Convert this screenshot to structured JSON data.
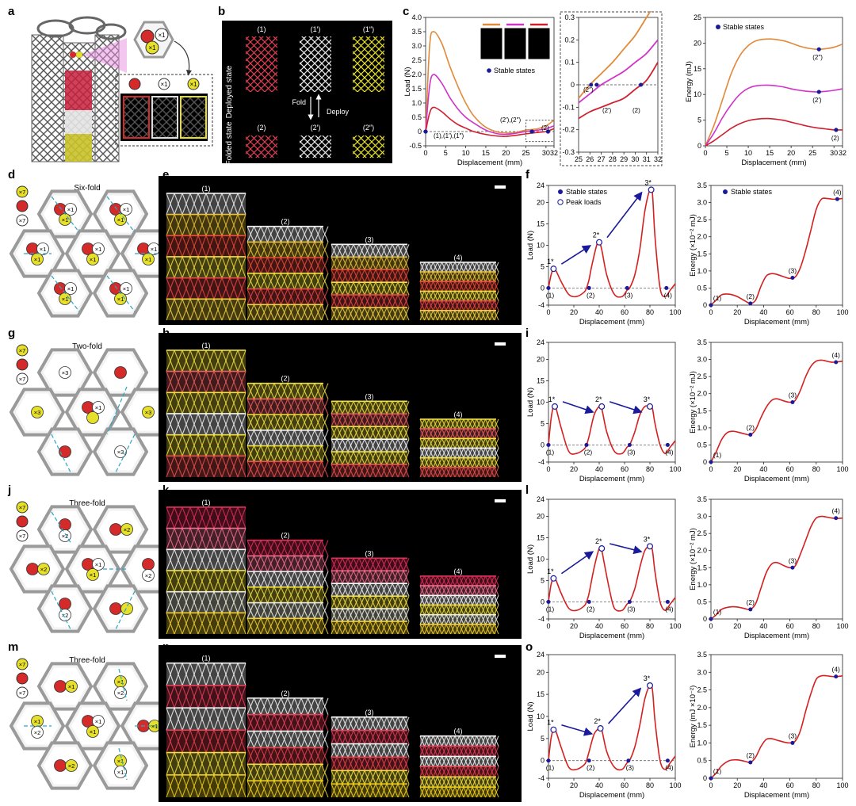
{
  "panel_labels": [
    "a",
    "b",
    "c",
    "d",
    "e",
    "f",
    "g",
    "h",
    "i",
    "j",
    "k",
    "l",
    "m",
    "n",
    "o"
  ],
  "colors": {
    "red": "#d42a2a",
    "white": "#e8e8e8",
    "yellow": "#e6e02a",
    "orange": "#e08a3a",
    "magenta": "#d033c8",
    "crimson": "#d01f2f",
    "frame": "#9a9a9a",
    "cyan": "#2aa7c4",
    "navy": "#1a1a9a"
  },
  "panel_a": {
    "multipliers": [
      "×1",
      "×1",
      "×1",
      "×1"
    ]
  },
  "panel_b": {
    "deployed_label": "Deployed state",
    "folded_label": "Folded state",
    "top_labels": [
      "(1)",
      "(1′)",
      "(1″)"
    ],
    "bottom_labels": [
      "(2)",
      "(2′)",
      "(2″)"
    ],
    "fold_label": "Fold",
    "deploy_label": "Deploy"
  },
  "panel_c_load": {
    "ylabel": "Load (N)",
    "xlabel": "Displacement (mm)",
    "yticks": [
      "4.0",
      "3.5",
      "3.0",
      "2.5",
      "2.0",
      "1.5",
      "1.0",
      "0.5",
      "0",
      "-0.5"
    ],
    "xticks": [
      "0",
      "5",
      "10",
      "15",
      "20",
      "25",
      "30",
      "32"
    ],
    "legend": "Stable states",
    "annotations": [
      "(1),(1′),(1″)",
      "(2′),(2″)",
      "(2)"
    ]
  },
  "panel_c_inset": {
    "yticks": [
      "0.3",
      "0.2",
      "0.1",
      "0",
      "-0.1",
      "-0.2",
      "-0.3"
    ],
    "xticks": [
      "25",
      "26",
      "27",
      "28",
      "29",
      "30",
      "31",
      "32"
    ],
    "annotations": [
      "(2″)",
      "(2′)",
      "(2)"
    ]
  },
  "panel_c_energy": {
    "ylabel": "Energy (mJ)",
    "xlabel": "Displacement (mm)",
    "yticks": [
      "25",
      "20",
      "15",
      "10",
      "5",
      "0"
    ],
    "xticks": [
      "0",
      "5",
      "10",
      "15",
      "20",
      "25",
      "30",
      "32"
    ],
    "legend": "Stable states",
    "annotations": [
      "(2″)",
      "(2′)",
      "(2)"
    ]
  },
  "chart_data": [
    {
      "type": "line",
      "title": "",
      "xlabel": "Displacement (mm)",
      "ylabel": "Load (N)",
      "xlim": [
        0,
        32
      ],
      "ylim": [
        -0.5,
        4.0
      ],
      "series": [
        {
          "color": "#e08a3a",
          "x": [
            0,
            1,
            2,
            4,
            6,
            8,
            10,
            12,
            15,
            18,
            20,
            22,
            25,
            28,
            30,
            32
          ],
          "y": [
            0,
            3.0,
            3.5,
            3.1,
            2.3,
            1.6,
            1.0,
            0.55,
            0.15,
            -0.02,
            -0.05,
            -0.04,
            0.05,
            0.1,
            0.2,
            0.4
          ]
        },
        {
          "color": "#d033c8",
          "x": [
            0,
            1,
            2,
            4,
            6,
            8,
            10,
            12,
            15,
            18,
            20,
            22,
            25,
            28,
            30,
            32
          ],
          "y": [
            0,
            1.6,
            2.0,
            1.7,
            1.2,
            0.8,
            0.5,
            0.3,
            0.05,
            -0.08,
            -0.1,
            -0.07,
            0.0,
            0.05,
            0.1,
            0.2
          ]
        },
        {
          "color": "#d01f2f",
          "x": [
            0,
            1,
            2,
            4,
            6,
            8,
            10,
            12,
            15,
            18,
            20,
            22,
            25,
            28,
            30,
            32
          ],
          "y": [
            0,
            0.65,
            0.85,
            0.7,
            0.45,
            0.25,
            0.12,
            0.0,
            -0.1,
            -0.16,
            -0.17,
            -0.14,
            -0.08,
            -0.03,
            0.0,
            0.1
          ]
        }
      ],
      "stable_points": [
        {
          "x": 0,
          "y": 0
        },
        {
          "x": 26.5,
          "y": 0
        },
        {
          "x": 30.5,
          "y": 0
        }
      ]
    },
    {
      "type": "line",
      "xlabel": "Displacement (mm)",
      "ylabel": "Energy (mJ)",
      "xlim": [
        0,
        32
      ],
      "ylim": [
        0,
        25
      ],
      "series": [
        {
          "color": "#e08a3a",
          "x": [
            0,
            2,
            4,
            6,
            8,
            10,
            12,
            15,
            18,
            20,
            22,
            24,
            26,
            28,
            30,
            32
          ],
          "y": [
            0,
            4,
            9,
            14,
            17.5,
            19.5,
            20.5,
            20.8,
            20.5,
            20,
            19.4,
            19,
            18.8,
            18.9,
            19.2,
            19.8
          ]
        },
        {
          "color": "#d033c8",
          "x": [
            0,
            2,
            4,
            6,
            8,
            10,
            12,
            15,
            18,
            20,
            22,
            24,
            26,
            28,
            30,
            32
          ],
          "y": [
            0,
            2.5,
            5.5,
            8,
            10,
            11.2,
            11.7,
            11.8,
            11.5,
            11.1,
            10.8,
            10.6,
            10.5,
            10.6,
            10.8,
            11.1
          ]
        },
        {
          "color": "#d01f2f",
          "x": [
            0,
            2,
            4,
            6,
            8,
            10,
            12,
            15,
            18,
            20,
            22,
            24,
            26,
            28,
            30,
            32
          ],
          "y": [
            0,
            1,
            2.2,
            3.4,
            4.3,
            4.9,
            5.2,
            5.3,
            5.0,
            4.6,
            4.2,
            3.8,
            3.5,
            3.3,
            3.1,
            3.1
          ]
        }
      ],
      "stable_points": [
        {
          "x": 26.5,
          "y": 18.8
        },
        {
          "x": 26.5,
          "y": 10.5
        },
        {
          "x": 30.5,
          "y": 3.1
        }
      ]
    },
    {
      "type": "line",
      "panel": "f",
      "xlabel": "Displacement (mm)",
      "ylabel": "Load (N)",
      "xlim": [
        0,
        100
      ],
      "ylim": [
        -4,
        24
      ],
      "x": [
        0,
        2,
        4,
        6,
        10,
        16,
        22,
        28,
        30,
        32,
        34,
        38,
        40,
        42,
        46,
        52,
        58,
        62,
        64,
        68,
        72,
        76,
        80,
        82,
        84,
        88,
        92,
        96,
        100
      ],
      "y": [
        0,
        3,
        4.5,
        4,
        1.5,
        -1.5,
        -2,
        -1,
        0,
        2,
        5,
        10,
        10.7,
        9,
        3,
        -1.5,
        -2,
        -0.5,
        0,
        3,
        9,
        18,
        23,
        22,
        12,
        0,
        -2,
        -0.5,
        1
      ],
      "peaks": [
        {
          "label": "1*",
          "x": 4,
          "y": 4.5
        },
        {
          "label": "2*",
          "x": 40,
          "y": 10.7
        },
        {
          "label": "3*",
          "x": 81,
          "y": 23
        }
      ],
      "stable": [
        {
          "label": "(1)",
          "x": 0,
          "y": 0
        },
        {
          "label": "(2)",
          "x": 32,
          "y": 0
        },
        {
          "label": "(3)",
          "x": 62,
          "y": 0
        },
        {
          "label": "(4)",
          "x": 93,
          "y": 0
        }
      ]
    },
    {
      "type": "line",
      "panel": "i",
      "xlabel": "Displacement (mm)",
      "ylabel": "Load (N)",
      "xlim": [
        0,
        100
      ],
      "ylim": [
        -4,
        24
      ],
      "x": [
        0,
        2,
        4,
        6,
        10,
        16,
        22,
        28,
        30,
        32,
        36,
        40,
        42,
        46,
        52,
        58,
        62,
        64,
        68,
        72,
        76,
        80,
        82,
        84,
        88,
        92,
        96,
        100
      ],
      "y": [
        0,
        6,
        9,
        8.5,
        4,
        -1.5,
        -2,
        -1,
        0,
        2,
        7,
        9,
        8.5,
        3,
        -1.5,
        -2,
        -0.5,
        0,
        3,
        7,
        9,
        9,
        8.5,
        5,
        0,
        -2,
        -0.5,
        1
      ],
      "peaks": [
        {
          "label": "1*",
          "x": 5,
          "y": 9
        },
        {
          "label": "2*",
          "x": 42,
          "y": 9
        },
        {
          "label": "3*",
          "x": 80,
          "y": 9
        }
      ],
      "stable": [
        {
          "label": "(1)",
          "x": 0,
          "y": 0
        },
        {
          "label": "(2)",
          "x": 30,
          "y": 0
        },
        {
          "label": "(3)",
          "x": 64,
          "y": 0
        },
        {
          "label": "(4)",
          "x": 94,
          "y": 0
        }
      ]
    },
    {
      "type": "line",
      "panel": "l",
      "xlabel": "Displacement (mm)",
      "ylabel": "Load (N)",
      "xlim": [
        0,
        100
      ],
      "ylim": [
        -4,
        24
      ],
      "x": [
        0,
        2,
        4,
        6,
        10,
        16,
        22,
        28,
        30,
        32,
        36,
        40,
        42,
        44,
        48,
        52,
        58,
        62,
        64,
        68,
        72,
        76,
        80,
        82,
        84,
        88,
        92,
        96,
        100
      ],
      "y": [
        0,
        4,
        5.5,
        5,
        2,
        -1.5,
        -2,
        -1,
        0,
        2,
        8,
        12.5,
        12,
        9,
        3,
        -1.5,
        -2,
        -0.5,
        0,
        3,
        8,
        12,
        13,
        12,
        7,
        0,
        -2,
        -0.5,
        1
      ],
      "peaks": [
        {
          "label": "1*",
          "x": 4,
          "y": 5.5
        },
        {
          "label": "2*",
          "x": 42,
          "y": 12.5
        },
        {
          "label": "3*",
          "x": 80,
          "y": 13
        }
      ],
      "stable": [
        {
          "label": "(1)",
          "x": 0,
          "y": 0
        },
        {
          "label": "(2)",
          "x": 32,
          "y": 0
        },
        {
          "label": "(3)",
          "x": 64,
          "y": 0
        },
        {
          "label": "(4)",
          "x": 94,
          "y": 0
        }
      ]
    },
    {
      "type": "line",
      "panel": "o",
      "xlabel": "Displacement (mm)",
      "ylabel": "Load (N)",
      "xlim": [
        0,
        100
      ],
      "ylim": [
        -4,
        24
      ],
      "x": [
        0,
        2,
        4,
        6,
        10,
        16,
        22,
        28,
        30,
        32,
        36,
        40,
        42,
        46,
        52,
        58,
        62,
        64,
        68,
        72,
        76,
        80,
        82,
        84,
        88,
        92,
        96,
        100
      ],
      "y": [
        0,
        5,
        7,
        6.5,
        3,
        -1.5,
        -2,
        -1,
        0,
        2,
        6,
        7.3,
        7,
        2,
        -1.5,
        -2,
        -0.5,
        0,
        3,
        8,
        14,
        17,
        16,
        9,
        0,
        -2,
        -0.5,
        1
      ],
      "peaks": [
        {
          "label": "1*",
          "x": 4,
          "y": 7
        },
        {
          "label": "2*",
          "x": 41,
          "y": 7.3
        },
        {
          "label": "3*",
          "x": 80,
          "y": 17
        }
      ],
      "stable": [
        {
          "label": "(1)",
          "x": 0,
          "y": 0
        },
        {
          "label": "(2)",
          "x": 32,
          "y": 0
        },
        {
          "label": "(3)",
          "x": 63,
          "y": 0
        },
        {
          "label": "(4)",
          "x": 94,
          "y": 0
        }
      ]
    },
    {
      "type": "line",
      "panel": "f-energy",
      "xlabel": "Displacement (mm)",
      "ylabel": "Energy (×10⁻² mJ)",
      "xlim": [
        0,
        100
      ],
      "ylim": [
        0,
        3.5
      ],
      "x": [
        0,
        4,
        8,
        14,
        20,
        26,
        30,
        34,
        38,
        42,
        46,
        50,
        56,
        60,
        64,
        68,
        72,
        76,
        80,
        84,
        88,
        92,
        96,
        100
      ],
      "y": [
        0,
        0.15,
        0.3,
        0.32,
        0.25,
        0.12,
        0.05,
        0.15,
        0.55,
        0.85,
        0.92,
        0.9,
        0.82,
        0.78,
        0.82,
        1.1,
        1.6,
        2.2,
        2.8,
        3.1,
        3.12,
        3.1,
        3.1,
        3.12
      ],
      "stable": [
        {
          "label": "(1)",
          "x": 0,
          "y": 0
        },
        {
          "label": "(2)",
          "x": 30,
          "y": 0.05
        },
        {
          "label": "(3)",
          "x": 62,
          "y": 0.8
        },
        {
          "label": "(4)",
          "x": 96,
          "y": 3.1
        }
      ]
    },
    {
      "type": "line",
      "panel": "i-energy",
      "xlabel": "Displacement (mm)",
      "ylabel": "Energy (×10⁻² mJ)",
      "xlim": [
        0,
        100
      ],
      "ylim": [
        0,
        3.5
      ],
      "x": [
        0,
        4,
        8,
        12,
        16,
        20,
        26,
        30,
        34,
        38,
        42,
        46,
        50,
        56,
        60,
        64,
        68,
        72,
        76,
        80,
        84,
        88,
        92,
        96,
        100
      ],
      "y": [
        0,
        0.3,
        0.65,
        0.85,
        0.9,
        0.88,
        0.82,
        0.8,
        0.95,
        1.3,
        1.6,
        1.8,
        1.85,
        1.78,
        1.75,
        1.8,
        2.1,
        2.5,
        2.8,
        2.95,
        2.98,
        2.95,
        2.92,
        2.93,
        2.95
      ],
      "stable": [
        {
          "label": "(1)",
          "x": 0,
          "y": 0
        },
        {
          "label": "(2)",
          "x": 30,
          "y": 0.8
        },
        {
          "label": "(3)",
          "x": 62,
          "y": 1.75
        },
        {
          "label": "(4)",
          "x": 95,
          "y": 2.92
        }
      ]
    },
    {
      "type": "line",
      "panel": "l-energy",
      "xlabel": "Displacement (mm)",
      "ylabel": "Energy (×10⁻² mJ)",
      "xlim": [
        0,
        100
      ],
      "ylim": [
        0,
        3.5
      ],
      "x": [
        0,
        4,
        8,
        14,
        20,
        26,
        30,
        34,
        38,
        42,
        46,
        50,
        56,
        60,
        64,
        68,
        72,
        76,
        80,
        84,
        88,
        92,
        96,
        100
      ],
      "y": [
        0,
        0.12,
        0.28,
        0.35,
        0.35,
        0.3,
        0.28,
        0.45,
        0.9,
        1.35,
        1.6,
        1.65,
        1.55,
        1.5,
        1.55,
        1.9,
        2.3,
        2.7,
        2.95,
        3.0,
        2.98,
        2.95,
        2.94,
        2.95
      ],
      "stable": [
        {
          "label": "(1)",
          "x": 0,
          "y": 0
        },
        {
          "label": "(2)",
          "x": 30,
          "y": 0.28
        },
        {
          "label": "(3)",
          "x": 62,
          "y": 1.5
        },
        {
          "label": "(4)",
          "x": 95,
          "y": 2.95
        }
      ]
    },
    {
      "type": "line",
      "panel": "o-energy",
      "xlabel": "Displacement (mm)",
      "ylabel": "Energy (mJ ×10⁻²)",
      "xlim": [
        0,
        100
      ],
      "ylim": [
        0,
        3.5
      ],
      "x": [
        0,
        4,
        8,
        14,
        20,
        26,
        30,
        34,
        38,
        42,
        46,
        50,
        56,
        60,
        64,
        68,
        72,
        76,
        80,
        84,
        88,
        92,
        96,
        100
      ],
      "y": [
        0,
        0.15,
        0.35,
        0.5,
        0.52,
        0.48,
        0.45,
        0.6,
        0.9,
        1.1,
        1.12,
        1.08,
        1.02,
        1.0,
        1.05,
        1.35,
        1.9,
        2.4,
        2.8,
        2.9,
        2.9,
        2.88,
        2.88,
        2.9
      ],
      "stable": [
        {
          "label": "(1)",
          "x": 0,
          "y": 0
        },
        {
          "label": "(2)",
          "x": 30,
          "y": 0.45
        },
        {
          "label": "(3)",
          "x": 62,
          "y": 1.0
        },
        {
          "label": "(4)",
          "x": 95,
          "y": 2.88
        }
      ]
    }
  ],
  "load_axis": {
    "yticks": [
      "24",
      "20",
      "15",
      "10",
      "5",
      "0",
      "-4"
    ],
    "xticks": [
      "0",
      "20",
      "40",
      "60",
      "80",
      "100"
    ],
    "ylabel": "Load (N)",
    "xlabel": "Displacement (mm)"
  },
  "energy_axis": {
    "yticks": [
      "3.5",
      "3.0",
      "2.5",
      "2.0",
      "1.5",
      "1.0",
      "0.5",
      "0"
    ],
    "xticks": [
      "0",
      "20",
      "40",
      "60",
      "80",
      "100"
    ],
    "xlabel": "Displacement (mm)"
  },
  "legend_f": {
    "stable": "Stable states",
    "peak": "Peak loads"
  },
  "legend_f_energy": "Stable states",
  "row_titles": {
    "d": "Six-fold",
    "g": "Two-fold",
    "j": "Three-fold",
    "m": "Three-fold"
  },
  "energy_ylabels": {
    "f": "Energy (×10⁻² mJ)",
    "i": "Energy (×10⁻² mJ)",
    "l": "Energy (×10⁻² mJ)",
    "o": "Energy (mJ ×10⁻²)"
  },
  "photo_labels": [
    "(1)",
    "(2)",
    "(3)",
    "(4)"
  ],
  "legend_counts": {
    "d": [
      "×7",
      "×7"
    ],
    "g": [
      "×7",
      "×7"
    ],
    "j": [
      "×7",
      "×7"
    ],
    "m": [
      "×7",
      "×7"
    ]
  },
  "hex_d": [
    "×1",
    "×1",
    "×1",
    "×1",
    "×1",
    "×1",
    "×1",
    "×1",
    "×1",
    "×1",
    "×1",
    "×1",
    "×1",
    "×1"
  ],
  "hex_g": [
    "×3",
    "×3",
    "×1",
    "×3",
    "×3"
  ],
  "hex_j": [
    "×2",
    "×2",
    "×2",
    "×1",
    "×1",
    "×2",
    "×2"
  ],
  "hex_m": [
    "×1",
    "×1",
    "×2",
    "×1",
    "×2",
    "×1",
    "×1",
    "×1",
    "×2",
    "×1",
    "×1",
    "×2"
  ]
}
